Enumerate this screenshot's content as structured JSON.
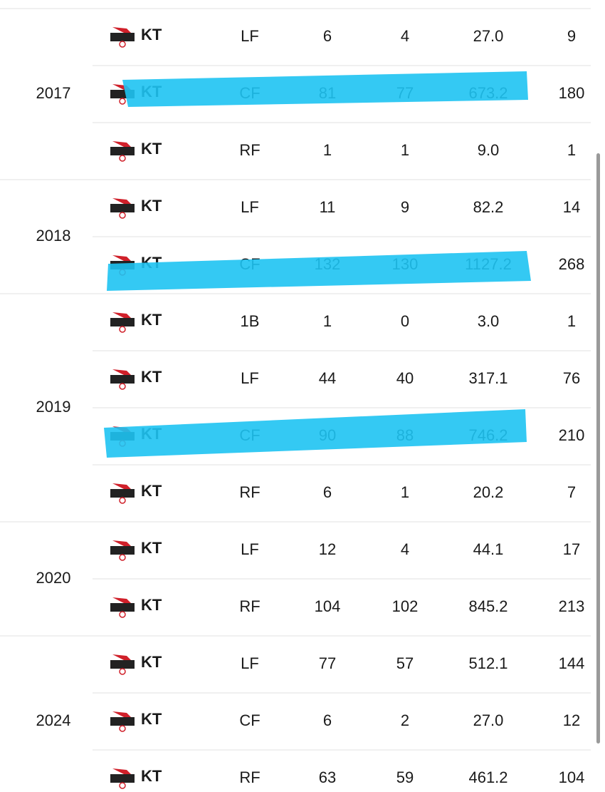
{
  "table": {
    "groups": [
      {
        "year": "2017",
        "rows": [
          [
            "KT",
            "LF",
            "6",
            "4",
            "27.0",
            "9"
          ],
          [
            "KT",
            "CF",
            "81",
            "77",
            "673.2",
            "180"
          ],
          [
            "KT",
            "RF",
            "1",
            "1",
            "9.0",
            "1"
          ]
        ]
      },
      {
        "year": "2018",
        "rows": [
          [
            "KT",
            "LF",
            "11",
            "9",
            "82.2",
            "14"
          ],
          [
            "KT",
            "CF",
            "132",
            "130",
            "1127.2",
            "268"
          ]
        ]
      },
      {
        "year": "2019",
        "rows": [
          [
            "KT",
            "1B",
            "1",
            "0",
            "3.0",
            "1"
          ],
          [
            "KT",
            "LF",
            "44",
            "40",
            "317.1",
            "76"
          ],
          [
            "KT",
            "CF",
            "90",
            "88",
            "746.2",
            "210"
          ],
          [
            "KT",
            "RF",
            "6",
            "1",
            "20.2",
            "7"
          ]
        ]
      },
      {
        "year": "2020",
        "rows": [
          [
            "KT",
            "LF",
            "12",
            "4",
            "44.1",
            "17"
          ],
          [
            "KT",
            "RF",
            "104",
            "102",
            "845.2",
            "213"
          ]
        ]
      },
      {
        "year": "2024",
        "rows": [
          [
            "KT",
            "LF",
            "77",
            "57",
            "512.1",
            "144"
          ],
          [
            "KT",
            "CF",
            "6",
            "2",
            "27.0",
            "12"
          ],
          [
            "KT",
            "RF",
            "63",
            "59",
            "461.2",
            "104"
          ]
        ]
      }
    ]
  }
}
